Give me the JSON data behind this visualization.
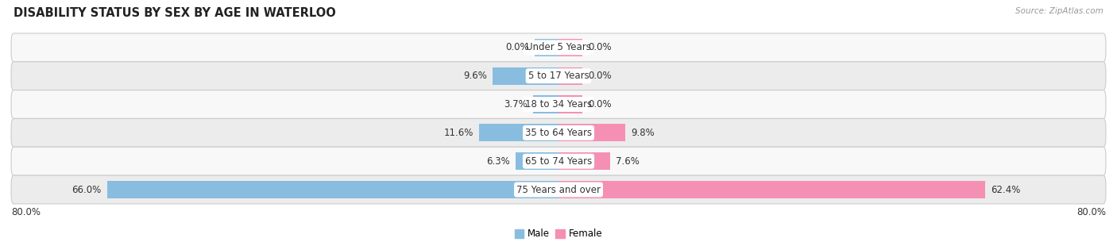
{
  "title": "DISABILITY STATUS BY SEX BY AGE IN WATERLOO",
  "source": "Source: ZipAtlas.com",
  "categories": [
    "Under 5 Years",
    "5 to 17 Years",
    "18 to 34 Years",
    "35 to 64 Years",
    "65 to 74 Years",
    "75 Years and over"
  ],
  "male_values": [
    0.0,
    9.6,
    3.7,
    11.6,
    6.3,
    66.0
  ],
  "female_values": [
    0.0,
    0.0,
    0.0,
    9.8,
    7.6,
    62.4
  ],
  "male_color": "#88bde0",
  "female_color": "#f590b4",
  "row_bg_odd": "#ececec",
  "row_bg_even": "#f8f8f8",
  "x_max": 80.0,
  "title_fontsize": 10.5,
  "label_fontsize": 8.5,
  "value_fontsize": 8.5,
  "tick_fontsize": 8.5,
  "bar_height": 0.62,
  "zero_stub": 3.5,
  "background_color": "#ffffff",
  "text_color": "#333333",
  "source_color": "#999999"
}
